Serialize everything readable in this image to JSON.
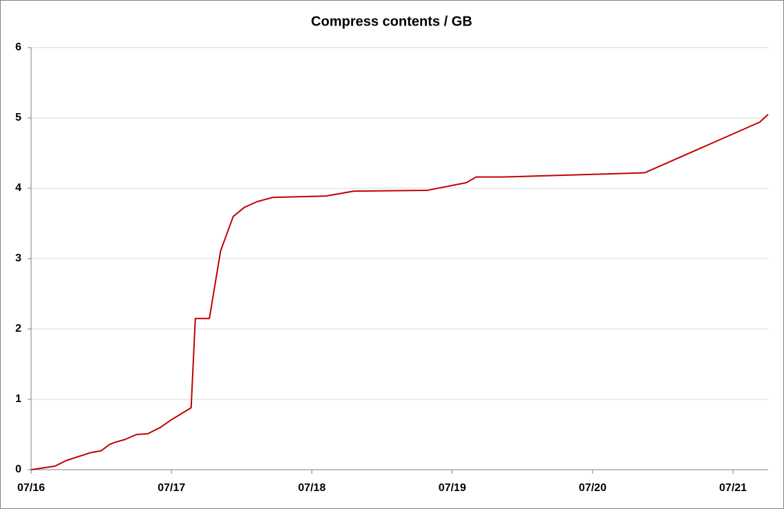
{
  "chart_data": {
    "type": "line",
    "title": "Compress contents / GB",
    "x": [
      0,
      0.17,
      0.25,
      0.42,
      0.5,
      0.56,
      0.6,
      0.67,
      0.75,
      0.83,
      0.92,
      1.0,
      1.14,
      1.17,
      1.27,
      1.35,
      1.44,
      1.52,
      1.61,
      1.72,
      2.1,
      2.3,
      2.82,
      3.1,
      3.17,
      3.36,
      4.37,
      5.19,
      5.25
    ],
    "series": [
      {
        "name": "Compress contents",
        "color": "#c00000",
        "values": [
          0,
          0.05,
          0.13,
          0.24,
          0.27,
          0.36,
          0.39,
          0.43,
          0.5,
          0.51,
          0.6,
          0.71,
          0.88,
          2.15,
          2.15,
          3.11,
          3.6,
          3.73,
          3.81,
          3.87,
          3.89,
          3.96,
          3.97,
          4.08,
          4.16,
          4.16,
          4.22,
          4.94,
          5.05
        ]
      }
    ],
    "xlim": [
      0,
      5.25
    ],
    "xticks": [
      {
        "value": 0,
        "label": "07/16"
      },
      {
        "value": 1,
        "label": "07/17"
      },
      {
        "value": 2,
        "label": "07/18"
      },
      {
        "value": 3,
        "label": "07/19"
      },
      {
        "value": 4,
        "label": "07/20"
      },
      {
        "value": 5,
        "label": "07/21"
      }
    ],
    "ylim": [
      0,
      6
    ],
    "yticks": [
      0,
      1,
      2,
      3,
      4,
      5,
      6
    ],
    "grid": true
  }
}
